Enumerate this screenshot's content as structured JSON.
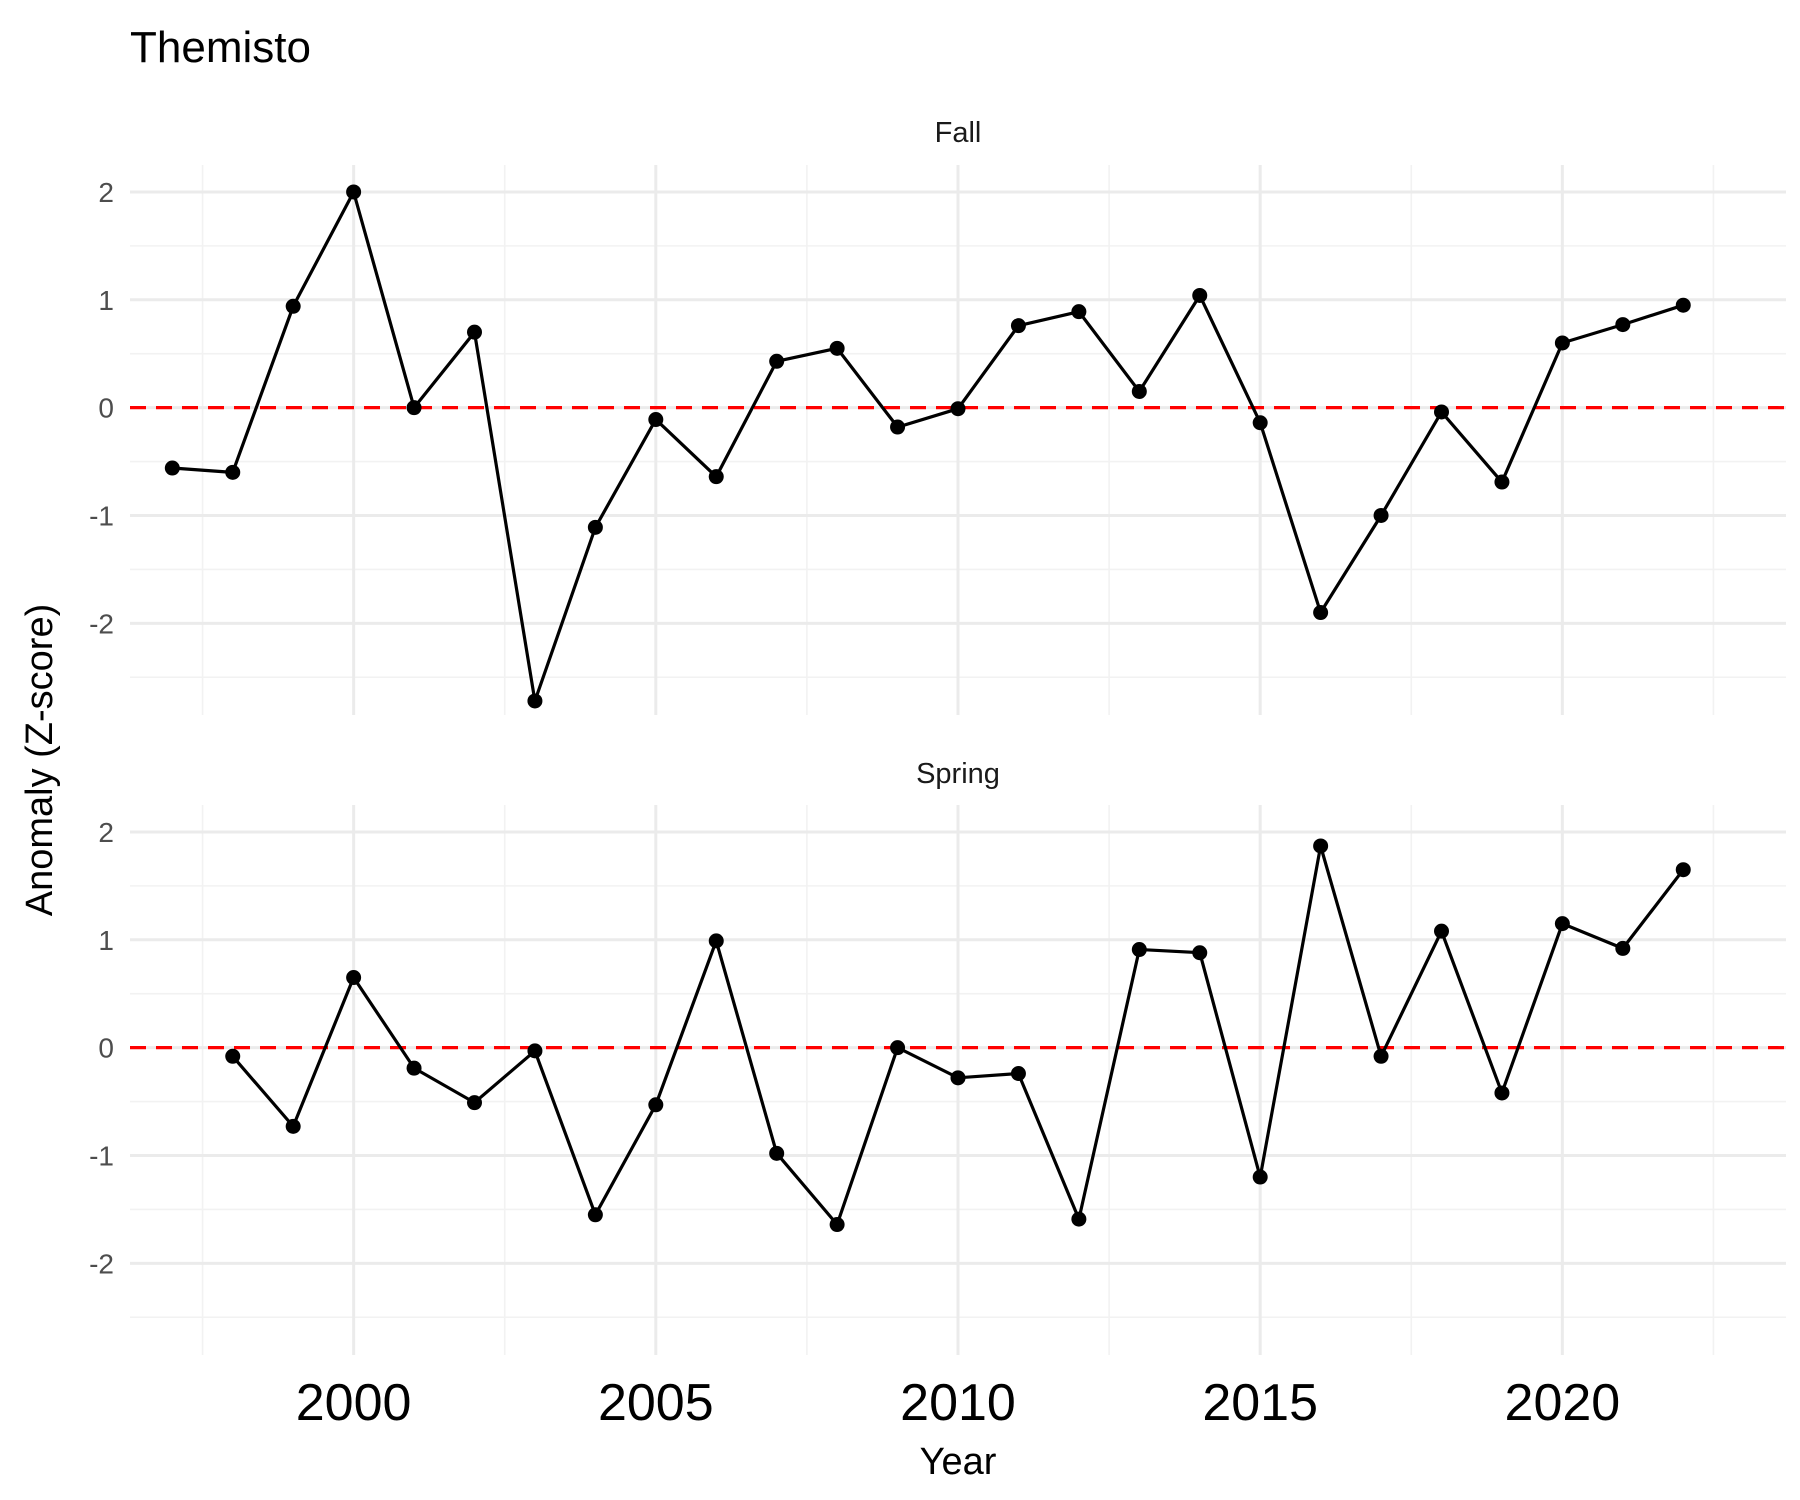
{
  "chart_data": {
    "type": "line",
    "title": "Themisto",
    "xlabel": "Year",
    "ylabel": "Anomaly (Z-score)",
    "xlim": [
      1996.3,
      2023.7
    ],
    "ylim": [
      -2.85,
      2.25
    ],
    "x_ticks": [
      2000,
      2005,
      2010,
      2015,
      2020
    ],
    "x_tick_labels": [
      "2000",
      "2005",
      "2010",
      "2015",
      "2020"
    ],
    "y_ticks": [
      -2,
      -1,
      0,
      1,
      2
    ],
    "y_tick_labels": [
      "-2",
      "-1",
      "0",
      "1",
      "2"
    ],
    "reference_line": {
      "y": 0,
      "style": "dashed",
      "color": "#ff0000"
    },
    "grid": true,
    "line_color": "#000000",
    "panels": [
      {
        "label": "Fall",
        "x": [
          1997,
          1998,
          1999,
          2000,
          2001,
          2002,
          2003,
          2004,
          2005,
          2006,
          2007,
          2008,
          2009,
          2010,
          2011,
          2012,
          2013,
          2014,
          2015,
          2016,
          2017,
          2018,
          2019,
          2020,
          2021,
          2022
        ],
        "y": [
          -0.56,
          -0.6,
          0.94,
          2.0,
          0.0,
          0.7,
          -2.72,
          -1.11,
          -0.11,
          -0.64,
          0.43,
          0.55,
          -0.18,
          -0.01,
          0.76,
          0.89,
          0.15,
          1.04,
          -0.14,
          -1.9,
          -1.0,
          -0.04,
          -0.69,
          0.6,
          0.77,
          0.95
        ]
      },
      {
        "label": "Spring",
        "x": [
          1998,
          1999,
          2000,
          2001,
          2002,
          2003,
          2004,
          2005,
          2006,
          2007,
          2008,
          2009,
          2010,
          2011,
          2012,
          2013,
          2014,
          2015,
          2016,
          2017,
          2018,
          2019,
          2020,
          2021,
          2022
        ],
        "y": [
          -0.08,
          -0.73,
          0.65,
          -0.19,
          -0.51,
          -0.03,
          -1.55,
          -0.53,
          0.99,
          -0.98,
          -1.64,
          0.0,
          -0.28,
          -0.24,
          -1.59,
          0.91,
          0.88,
          -1.2,
          1.87,
          -0.08,
          1.08,
          -0.42,
          1.15,
          0.92,
          1.65
        ]
      }
    ]
  }
}
